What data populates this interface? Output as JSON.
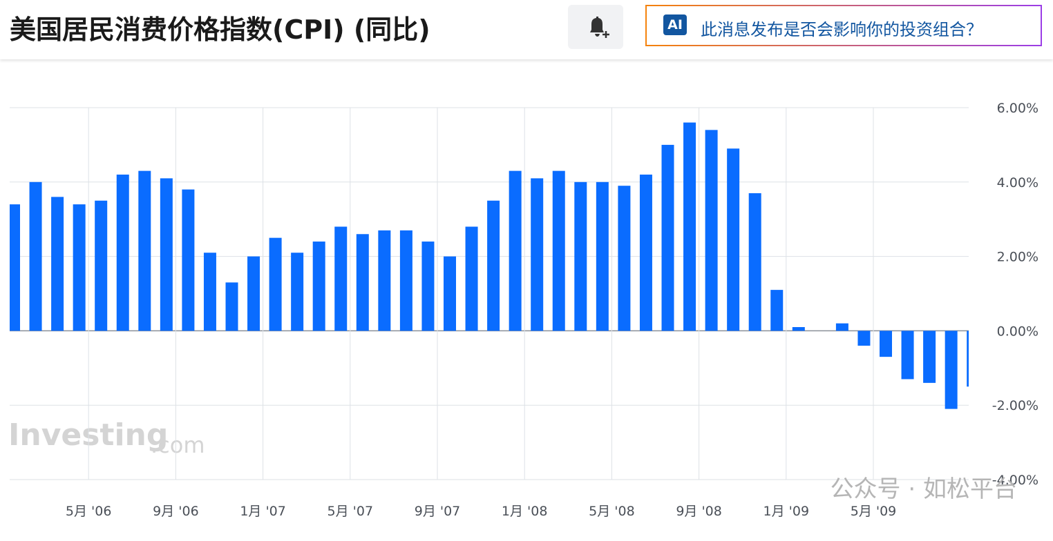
{
  "header": {
    "ai_badge": "AI",
    "ai_prompt": "此消息发布是否会影响你的投资组合？"
  },
  "watermarks": [
    "Investing",
    ".com",
    "公众号 · 如松平台"
  ],
  "chart_data": {
    "type": "bar",
    "title": "美国居民消费价格指数(CPI) (同比)",
    "categories": [
      null,
      null,
      null,
      null,
      "5月 '06",
      null,
      null,
      null,
      "9月 '06",
      null,
      null,
      null,
      "1月 '07",
      null,
      null,
      null,
      "5月 '07",
      null,
      null,
      null,
      "9月 '07",
      null,
      null,
      null,
      "1月 '08",
      null,
      null,
      null,
      "5月 '08",
      null,
      null,
      null,
      "9月 '08",
      null,
      null,
      null,
      "1月 '09",
      null,
      null,
      null,
      "5月 '09",
      null,
      null,
      null,
      null
    ],
    "values": [
      3.4,
      4.0,
      3.6,
      3.4,
      3.5,
      4.2,
      4.3,
      4.1,
      3.8,
      2.1,
      1.3,
      2.0,
      2.5,
      2.1,
      2.4,
      2.8,
      2.6,
      2.7,
      2.7,
      2.4,
      2.0,
      2.8,
      3.5,
      4.3,
      4.1,
      4.3,
      4.0,
      4.0,
      3.9,
      4.2,
      5.0,
      5.6,
      5.4,
      4.9,
      3.7,
      1.1,
      0.1,
      0.0,
      0.2,
      -0.4,
      -0.7,
      -1.3,
      -1.4,
      -2.1,
      -1.5
    ],
    "color": "#0a6cff",
    "ylim": [
      -4,
      6
    ],
    "yticks": [
      {
        "value": -4,
        "label": "-4.00%"
      },
      {
        "value": -2,
        "label": "-2.00%"
      },
      {
        "value": 0,
        "label": "0.00%"
      },
      {
        "value": 2,
        "label": "2.00%"
      },
      {
        "value": 4,
        "label": "4.00%"
      },
      {
        "value": 6,
        "label": "6.00%"
      }
    ],
    "grid": true
  }
}
